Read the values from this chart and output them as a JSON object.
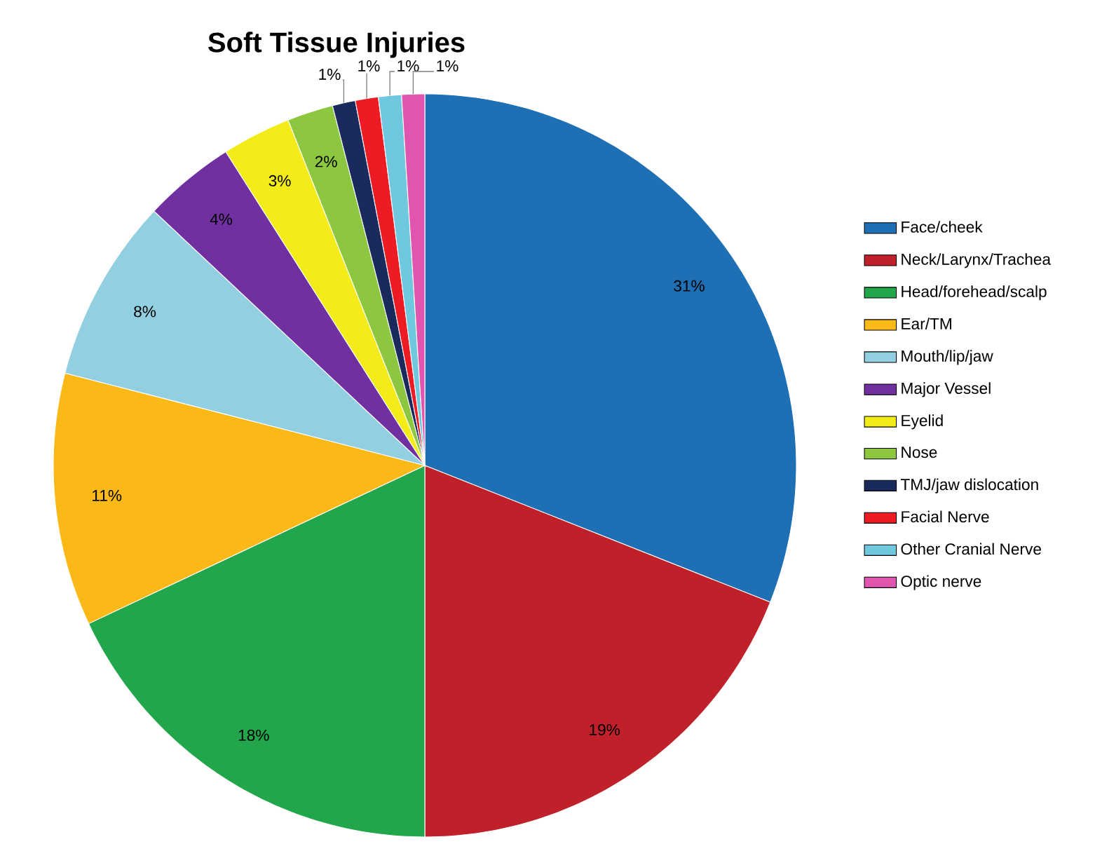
{
  "chart_data": {
    "type": "pie",
    "title": "Soft Tissue Injuries",
    "categories": [
      "Face/cheek",
      "Neck/Larynx/Trachea",
      "Head/forehead/scalp",
      "Ear/TM",
      "Mouth/lip/jaw",
      "Major Vessel",
      "Eyelid",
      "Nose",
      "TMJ/jaw dislocation",
      "Facial Nerve",
      "Other Cranial Nerve",
      "Optic nerve"
    ],
    "values": [
      31,
      19,
      18,
      11,
      8,
      4,
      3,
      2,
      1,
      1,
      1,
      1
    ],
    "value_labels": [
      "31%",
      "19%",
      "18%",
      "11%",
      "8%",
      "4%",
      "3%",
      "2%",
      "1%",
      "1%",
      "1%",
      "1%"
    ],
    "colors": [
      "#1f6fb4",
      "#c0202a",
      "#21a64b",
      "#fbb917",
      "#92cfe0",
      "#7030a0",
      "#f3ec19",
      "#8dc63f",
      "#1b2a5c",
      "#ed1c24",
      "#70c8df",
      "#e055b0"
    ],
    "legend": "right"
  }
}
